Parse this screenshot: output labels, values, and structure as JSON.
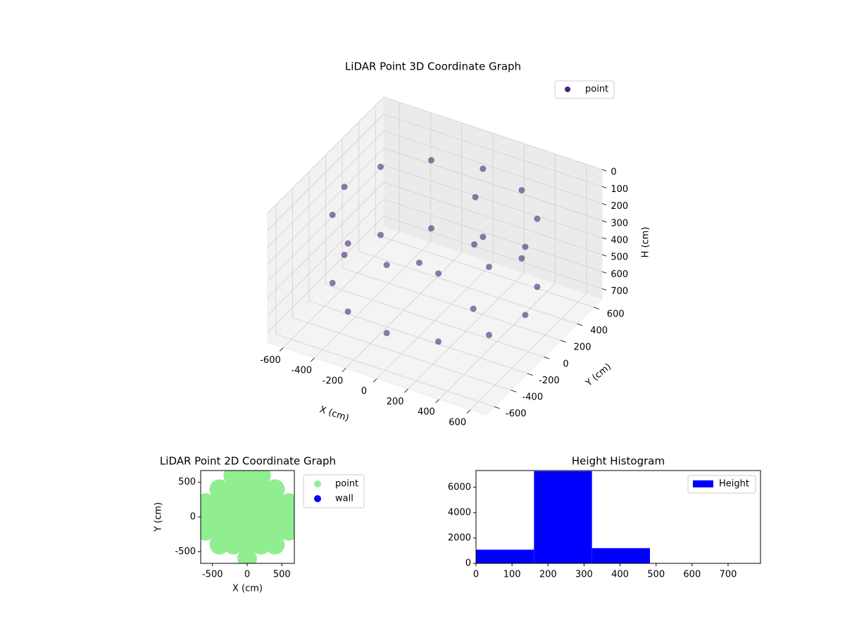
{
  "chart_data": [
    {
      "type": "scatter3d",
      "title": "LiDAR Point 3D Coordinate Graph",
      "xlabel": "X (cm)",
      "ylabel": "Y (cm)",
      "zlabel": "H (cm)",
      "xlim": [
        -700,
        700
      ],
      "ylim": [
        -700,
        700
      ],
      "zlim": [
        0,
        760
      ],
      "z_inverted": true,
      "xticks": [
        -600,
        -400,
        -200,
        0,
        200,
        400,
        600
      ],
      "yticks": [
        -600,
        -400,
        -200,
        0,
        200,
        400,
        600
      ],
      "zticks": [
        0,
        100,
        200,
        300,
        400,
        500,
        600,
        700
      ],
      "legend": "upper right",
      "series": [
        {
          "name": "point",
          "color": "#482475",
          "x": [
            580,
            502,
            290,
            0,
            -290,
            -502,
            -580,
            -502,
            -290,
            0,
            290,
            502,
            580,
            502,
            290,
            0,
            -290,
            -502,
            -580,
            -502,
            -290,
            0,
            290,
            502,
            100,
            200,
            -100,
            300
          ],
          "y": [
            0,
            290,
            502,
            580,
            502,
            290,
            0,
            -290,
            -502,
            -580,
            -502,
            -290,
            0,
            290,
            502,
            580,
            502,
            290,
            0,
            -290,
            -502,
            -580,
            -502,
            -290,
            300,
            100,
            0,
            -100
          ],
          "z": [
            150,
            150,
            150,
            150,
            150,
            150,
            150,
            150,
            150,
            150,
            150,
            150,
            550,
            550,
            550,
            550,
            550,
            550,
            550,
            550,
            550,
            550,
            550,
            550,
            150,
            300,
            450,
            550
          ]
        }
      ]
    },
    {
      "type": "scatter",
      "title": "LiDAR Point 2D Coordinate Graph",
      "xlabel": "X (cm)",
      "ylabel": "Y (cm)",
      "xlim": [
        -670,
        680
      ],
      "ylim": [
        -670,
        670
      ],
      "xticks": [
        -500,
        0,
        500
      ],
      "yticks": [
        -500,
        0,
        500
      ],
      "legend": "outside upper right",
      "series": [
        {
          "name": "point",
          "color": "#90ee90",
          "x": [
            -200,
            0,
            200,
            -400,
            -200,
            0,
            200,
            400,
            -600,
            -400,
            -200,
            0,
            200,
            400,
            600,
            -600,
            -400,
            -200,
            0,
            200,
            400,
            600,
            -400,
            -200,
            0,
            200,
            400,
            -200,
            0,
            200,
            -600,
            -600,
            600,
            600,
            0,
            0,
            -400,
            400,
            -400,
            400
          ],
          "y": [
            600,
            600,
            600,
            400,
            400,
            400,
            400,
            400,
            200,
            200,
            200,
            200,
            200,
            200,
            200,
            0,
            0,
            0,
            0,
            0,
            0,
            0,
            -200,
            -200,
            -200,
            -200,
            -200,
            -400,
            -400,
            -400,
            -200,
            0,
            -200,
            0,
            -600,
            600,
            -400,
            -400,
            400,
            400
          ]
        },
        {
          "name": "wall",
          "color": "#0000ff",
          "x": [],
          "y": []
        }
      ]
    },
    {
      "type": "histogram",
      "title": "Height Histogram",
      "xlim": [
        0,
        790
      ],
      "ylim": [
        0,
        7320
      ],
      "xticks": [
        0,
        100,
        200,
        300,
        400,
        500,
        600,
        700
      ],
      "yticks": [
        0,
        2000,
        4000,
        6000
      ],
      "legend": "upper right",
      "series": [
        {
          "name": "Height",
          "color": "#0000ff",
          "bins": [
            0,
            161,
            322,
            483,
            644,
            805
          ],
          "counts": [
            1080,
            7270,
            1200,
            20,
            10
          ]
        }
      ]
    }
  ]
}
